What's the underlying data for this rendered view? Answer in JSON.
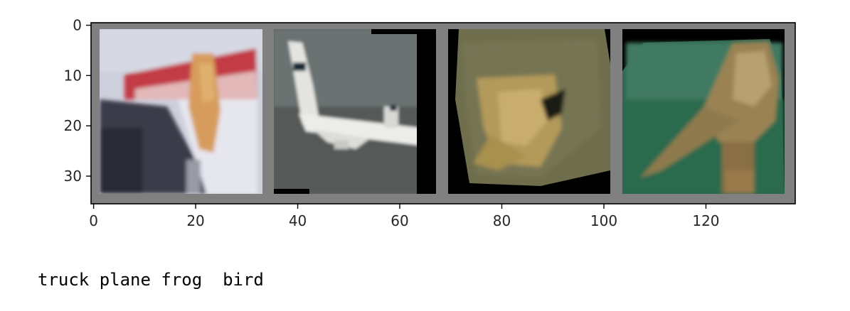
{
  "chart_data": {
    "type": "image_grid",
    "title": "",
    "xlabel": "",
    "ylabel": "",
    "xlim": [
      -0.5,
      137.5
    ],
    "ylim": [
      35.5,
      -0.5
    ],
    "x_ticks": [
      0,
      20,
      40,
      60,
      80,
      100,
      120
    ],
    "y_ticks": [
      0,
      10,
      20,
      30
    ],
    "grid_background": "#808080",
    "tile_size": 32,
    "tile_padding": 2,
    "images": [
      {
        "label": "truck",
        "x_start": 2,
        "x_end": 33,
        "y_start": 2,
        "y_end": 33,
        "dominant_colors": [
          "#c9ccd8",
          "#b3303a",
          "#3a3a48",
          "#d7a066"
        ]
      },
      {
        "label": "plane",
        "x_start": 36,
        "x_end": 67,
        "y_start": 2,
        "y_end": 33,
        "dominant_colors": [
          "#5e6466",
          "#e8e8e4",
          "#1d2a3a",
          "#000000"
        ]
      },
      {
        "label": "frog",
        "x_start": 70,
        "x_end": 101,
        "y_start": 2,
        "y_end": 33,
        "dominant_colors": [
          "#6f6e4c",
          "#b49a5c",
          "#000000"
        ]
      },
      {
        "label": "bird",
        "x_start": 104,
        "x_end": 135,
        "y_start": 2,
        "y_end": 33,
        "dominant_colors": [
          "#2e6650",
          "#9c8452",
          "#000000"
        ]
      }
    ]
  },
  "caption": {
    "text": "truck plane frog  bird"
  }
}
